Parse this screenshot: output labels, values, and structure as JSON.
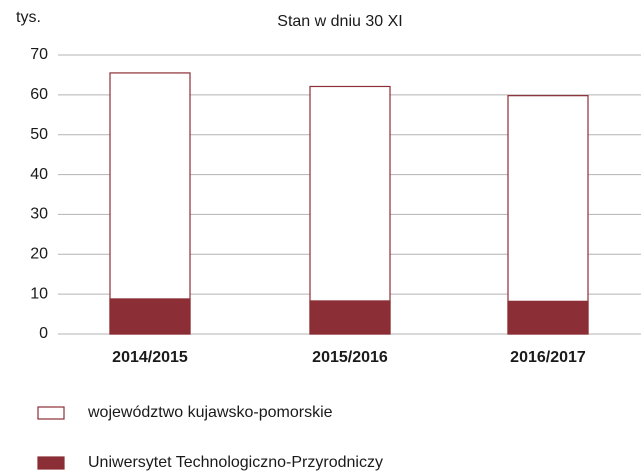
{
  "chart_data": {
    "type": "bar",
    "subtitle": "Stan w dniu 30 XI",
    "y_label": "tys.",
    "categories": [
      "2014/2015",
      "2015/2016",
      "2016/2017"
    ],
    "series": [
      {
        "name": "województwo kujawsko-pomorskie",
        "color": "#ffffff",
        "values": [
          65.5,
          62.1,
          59.8
        ]
      },
      {
        "name": "Uniwersytet Technologiczno-Przyrodniczy",
        "color": "#8b2e35",
        "values": [
          8.8,
          8.3,
          8.2
        ]
      }
    ],
    "ylim": [
      0,
      70
    ],
    "yticks": [
      0,
      10,
      20,
      30,
      40,
      50,
      60,
      70
    ],
    "grid": true
  }
}
